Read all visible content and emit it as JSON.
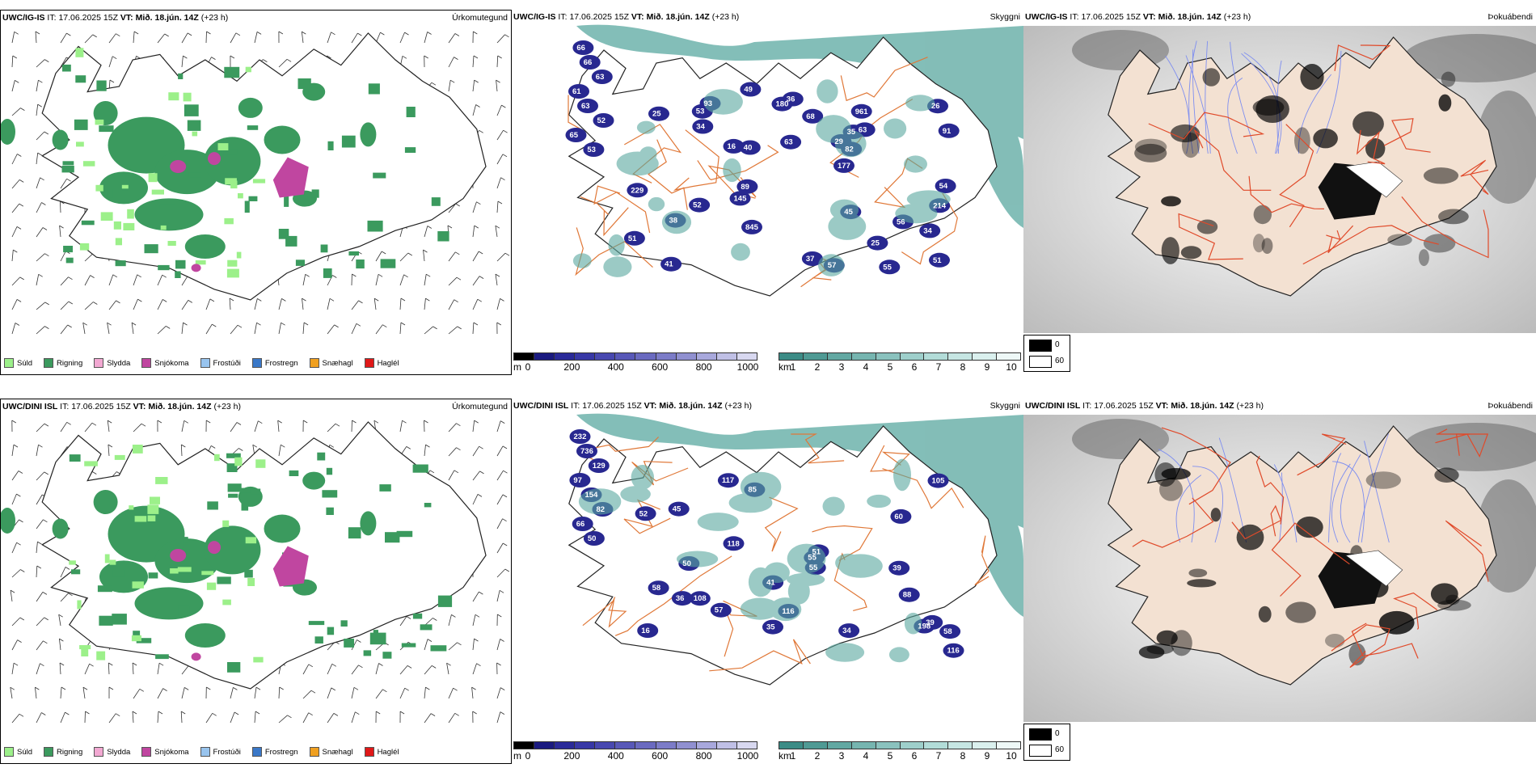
{
  "colors": {
    "sudd": "#9cf08a",
    "rigning": "#3b9a5e",
    "slydda": "#f2a8d2",
    "snjokoma": "#c046a0",
    "frostudi": "#98c4ee",
    "frostregn": "#3a78c8",
    "snaehagl": "#f0a020",
    "haglel": "#e01818",
    "roads": "#e07838",
    "rivers": "#7e8ef0",
    "land": "#f3e1d2",
    "sea_vis": "#5aa8a0",
    "cloud_deep": "#282890"
  },
  "rows": [
    {
      "model": "UWC/IG-IS",
      "it_label": "IT:",
      "it_value": "17.06.2025 15Z",
      "vt_label": "VT:",
      "vt_value": "Mið. 18.jún. 14Z",
      "lead": "(+23 h)",
      "ceiling_labels": [
        "66",
        "66",
        "63",
        "61",
        "63",
        "52",
        "65",
        "53",
        "16",
        "51",
        "57",
        "82",
        "34",
        "26",
        "34",
        "25",
        "89",
        "49",
        "51",
        "52",
        "40",
        "41",
        "56",
        "93",
        "54",
        "68",
        "145",
        "55",
        "63",
        "91",
        "214",
        "29",
        "63",
        "25",
        "45",
        "53",
        "37",
        "38",
        "36",
        "35",
        "845",
        "177",
        "180",
        "961",
        "229"
      ],
      "fog_labels": [
        "0",
        "60"
      ]
    },
    {
      "model": "UWC/DINI ISL",
      "it_label": "IT:",
      "it_value": "17.06.2025 15Z",
      "vt_label": "VT:",
      "vt_value": "Mið. 18.jún. 14Z",
      "lead": "(+23 h)",
      "ceiling_labels": [
        "232",
        "736",
        "129",
        "97",
        "154",
        "82",
        "66",
        "50",
        "116",
        "116",
        "108",
        "117",
        "105",
        "88",
        "85",
        "57",
        "45",
        "55",
        "60",
        "41",
        "50",
        "39",
        "52",
        "55",
        "198",
        "118",
        "16",
        "58",
        "51",
        "58",
        "39",
        "36",
        "34",
        "35"
      ],
      "fog_labels": [
        "0",
        "60"
      ]
    }
  ],
  "panel_titles": {
    "precip": "Úrkomutegund",
    "ceiling": "Skyggni",
    "fog": "Þokuábendi"
  },
  "precip_legend": [
    {
      "key": "sudd",
      "label": "Súld"
    },
    {
      "key": "rigning",
      "label": "Rigning"
    },
    {
      "key": "slydda",
      "label": "Slydda"
    },
    {
      "key": "snjokoma",
      "label": "Snjókoma"
    },
    {
      "key": "frostudi",
      "label": "Frostúði"
    },
    {
      "key": "frostregn",
      "label": "Frostregn"
    },
    {
      "key": "snaehagl",
      "label": "Snæhagl"
    },
    {
      "key": "haglel",
      "label": "Haglél"
    }
  ],
  "ceiling_bar": {
    "unit": "m",
    "ticks": [
      "0",
      "200",
      "400",
      "600",
      "800",
      "1000"
    ]
  },
  "visibility_bar": {
    "unit": "km",
    "ticks": [
      "1",
      "2",
      "3",
      "4",
      "5",
      "6",
      "7",
      "8",
      "9",
      "10"
    ]
  }
}
